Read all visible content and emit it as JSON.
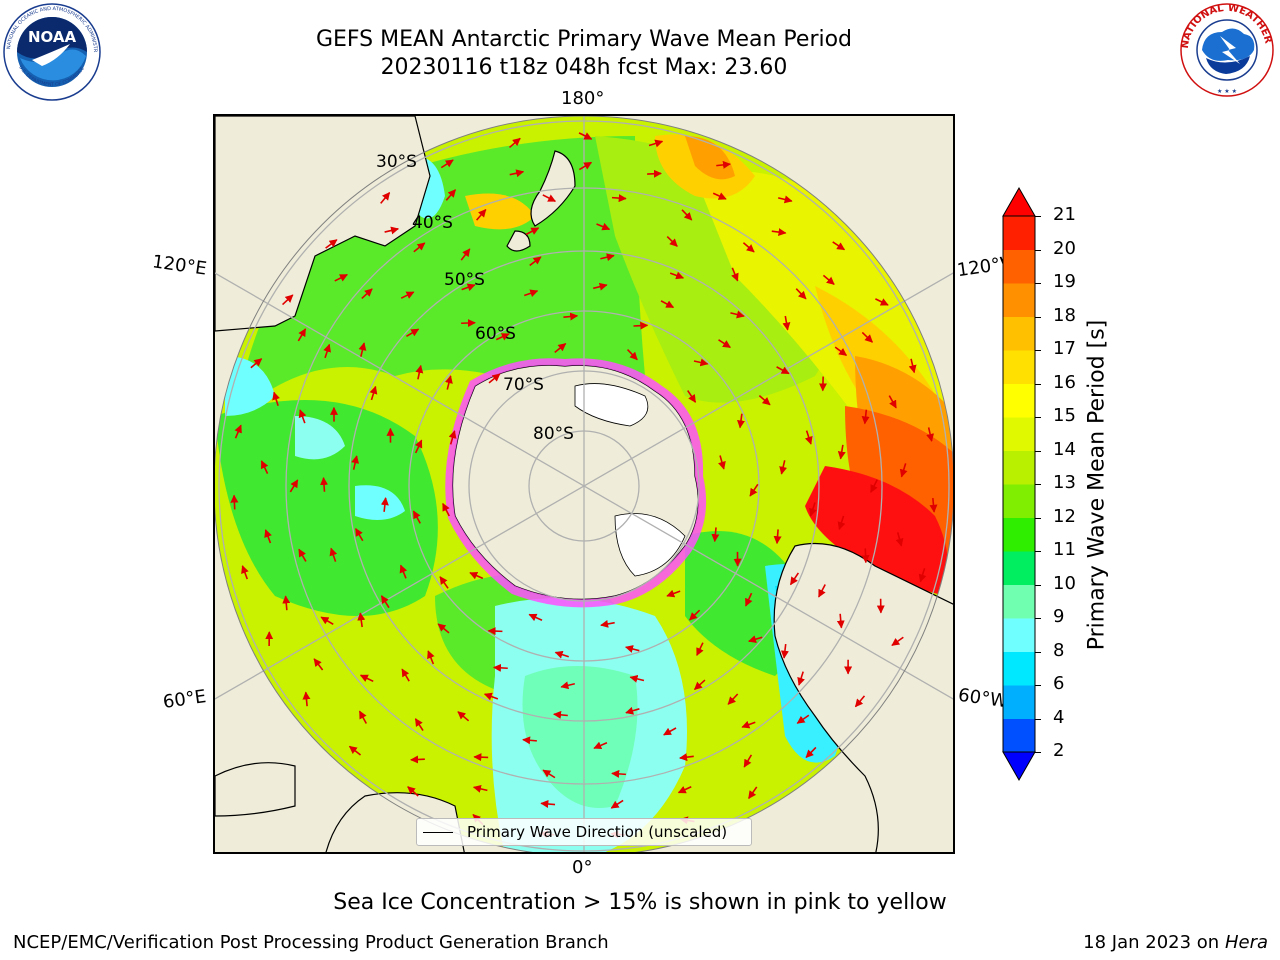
{
  "header": {
    "title_line1": "GEFS MEAN Antarctic Primary Wave Mean Period",
    "title_line2": "20230116 t18z 048h fcst   Max: 23.60"
  },
  "logos": {
    "left": "NOAA",
    "left_ring_text": "NATIONAL OCEANIC AND ATMOSPHERIC ADMINISTRATION",
    "left_bottom_text": "U.S. DEPARTMENT OF COMMERCE",
    "right_ring_text": "NATIONAL WEATHER SERVICE"
  },
  "map": {
    "projection": "south-polar-stereographic",
    "center_longitude_top": "180°",
    "lon_labels": {
      "top": "180°",
      "bottom": "0°",
      "upper_left": "120°E",
      "upper_right": "120°W",
      "lower_left": "60°E",
      "lower_right": "60°W"
    },
    "lat_labels": [
      "30°S",
      "40°S",
      "50°S",
      "60°S",
      "70°S",
      "80°S"
    ],
    "colors": {
      "land": "#efedd9",
      "ice": "#ffffff",
      "arrow": "#e00000",
      "grid": "#b0b0b0"
    }
  },
  "legend": {
    "label": "Primary Wave Direction (unscaled)"
  },
  "colorbar": {
    "label": "Primary Wave Mean Period [s]",
    "ticks": [
      "2",
      "4",
      "6",
      "8",
      "9",
      "10",
      "11",
      "12",
      "13",
      "14",
      "15",
      "16",
      "17",
      "18",
      "19",
      "20",
      "21"
    ],
    "colors": [
      "#0050ff",
      "#00b0ff",
      "#00e8ff",
      "#70ffff",
      "#70ffb0",
      "#00ee60",
      "#30ee00",
      "#80ee00",
      "#b8f000",
      "#e0f800",
      "#ffff00",
      "#ffe000",
      "#ffc000",
      "#ff9000",
      "#ff6000",
      "#ff2000"
    ],
    "extend_low_color": "#0000ff",
    "extend_high_color": "#ff0000"
  },
  "subtitle": "Sea Ice Concentration > 15% is shown in pink to yellow",
  "footer": {
    "left": "NCEP/EMC/Verification Post Processing Product Generation Branch",
    "right_date": "18 Jan 2023 on ",
    "right_machine": "Hera"
  }
}
